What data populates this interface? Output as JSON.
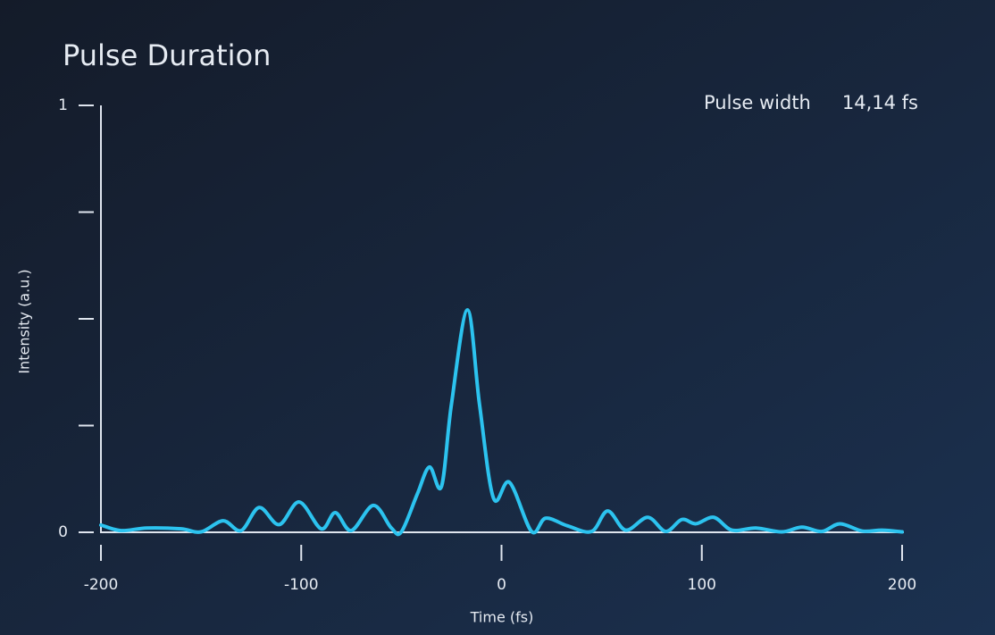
{
  "chart_data": {
    "type": "line",
    "title": "Pulse Duration",
    "annotation": {
      "label": "Pulse width",
      "value": "14,14 fs"
    },
    "x_label": "Time (fs)",
    "y_label": "Intensity (a.u.)",
    "xlim": [
      -200,
      200
    ],
    "xticks": [
      -200,
      -100,
      0,
      100,
      200
    ],
    "ylim": [
      0,
      1
    ],
    "yticks": [
      0,
      1
    ],
    "yminor_ticks": [
      0.25,
      0.5,
      0.75
    ],
    "series": [
      {
        "name": "Intensity",
        "color": "#2cc3ef",
        "x": [
          -200,
          -190,
          -177,
          -160,
          -150,
          -139,
          -130,
          -121,
          -111,
          -101,
          -90,
          -83,
          -75,
          -64,
          -55,
          -50,
          -42,
          -36,
          -30,
          -25,
          -17,
          -11,
          -4,
          4,
          15,
          22,
          33,
          45,
          53,
          62,
          73,
          82,
          90,
          97,
          106,
          115,
          127,
          140,
          150,
          160,
          169,
          180,
          190,
          200
        ],
        "values": [
          0.017,
          0.004,
          0.01,
          0.008,
          0.001,
          0.027,
          0.004,
          0.058,
          0.018,
          0.071,
          0.008,
          0.046,
          0.004,
          0.063,
          0.01,
          0.001,
          0.09,
          0.153,
          0.107,
          0.3,
          0.521,
          0.3,
          0.08,
          0.117,
          0.002,
          0.033,
          0.015,
          0.002,
          0.05,
          0.005,
          0.035,
          0.002,
          0.03,
          0.02,
          0.035,
          0.005,
          0.01,
          0.001,
          0.012,
          0.002,
          0.02,
          0.003,
          0.005,
          0.001
        ]
      }
    ]
  }
}
